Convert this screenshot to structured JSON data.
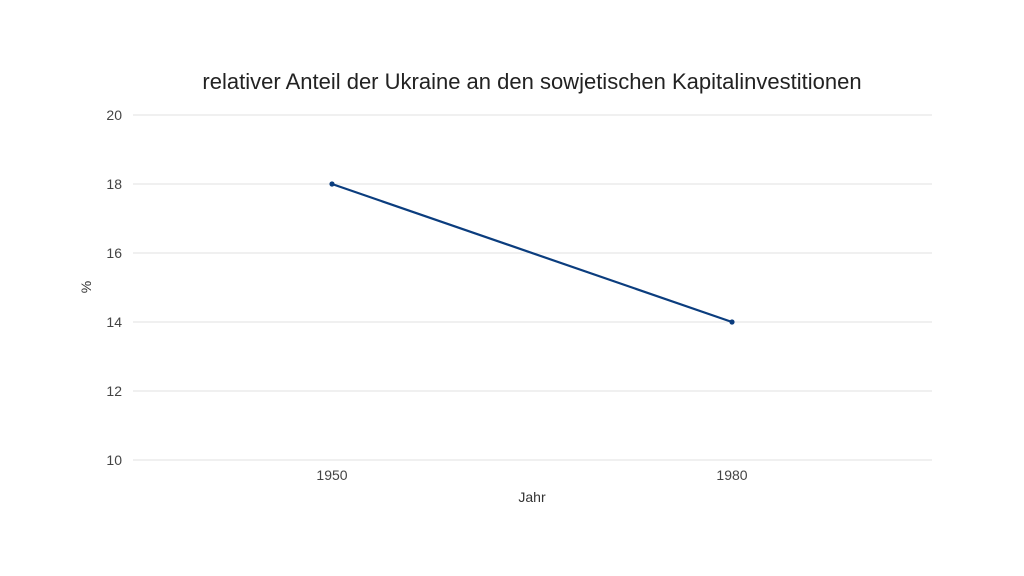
{
  "chart_data": {
    "type": "line",
    "title": "relativer Anteil der Ukraine an den sowjetischen Kapitalinvestitionen",
    "xlabel": "Jahr",
    "ylabel": "%",
    "categories": [
      "1950",
      "1980"
    ],
    "series": [
      {
        "values": [
          18,
          14
        ],
        "color": "#0b3d7e"
      }
    ],
    "ylim": [
      10,
      20
    ],
    "yticks": [
      "10",
      "12",
      "14",
      "16",
      "18",
      "20"
    ],
    "grid": true,
    "legend": "none"
  }
}
